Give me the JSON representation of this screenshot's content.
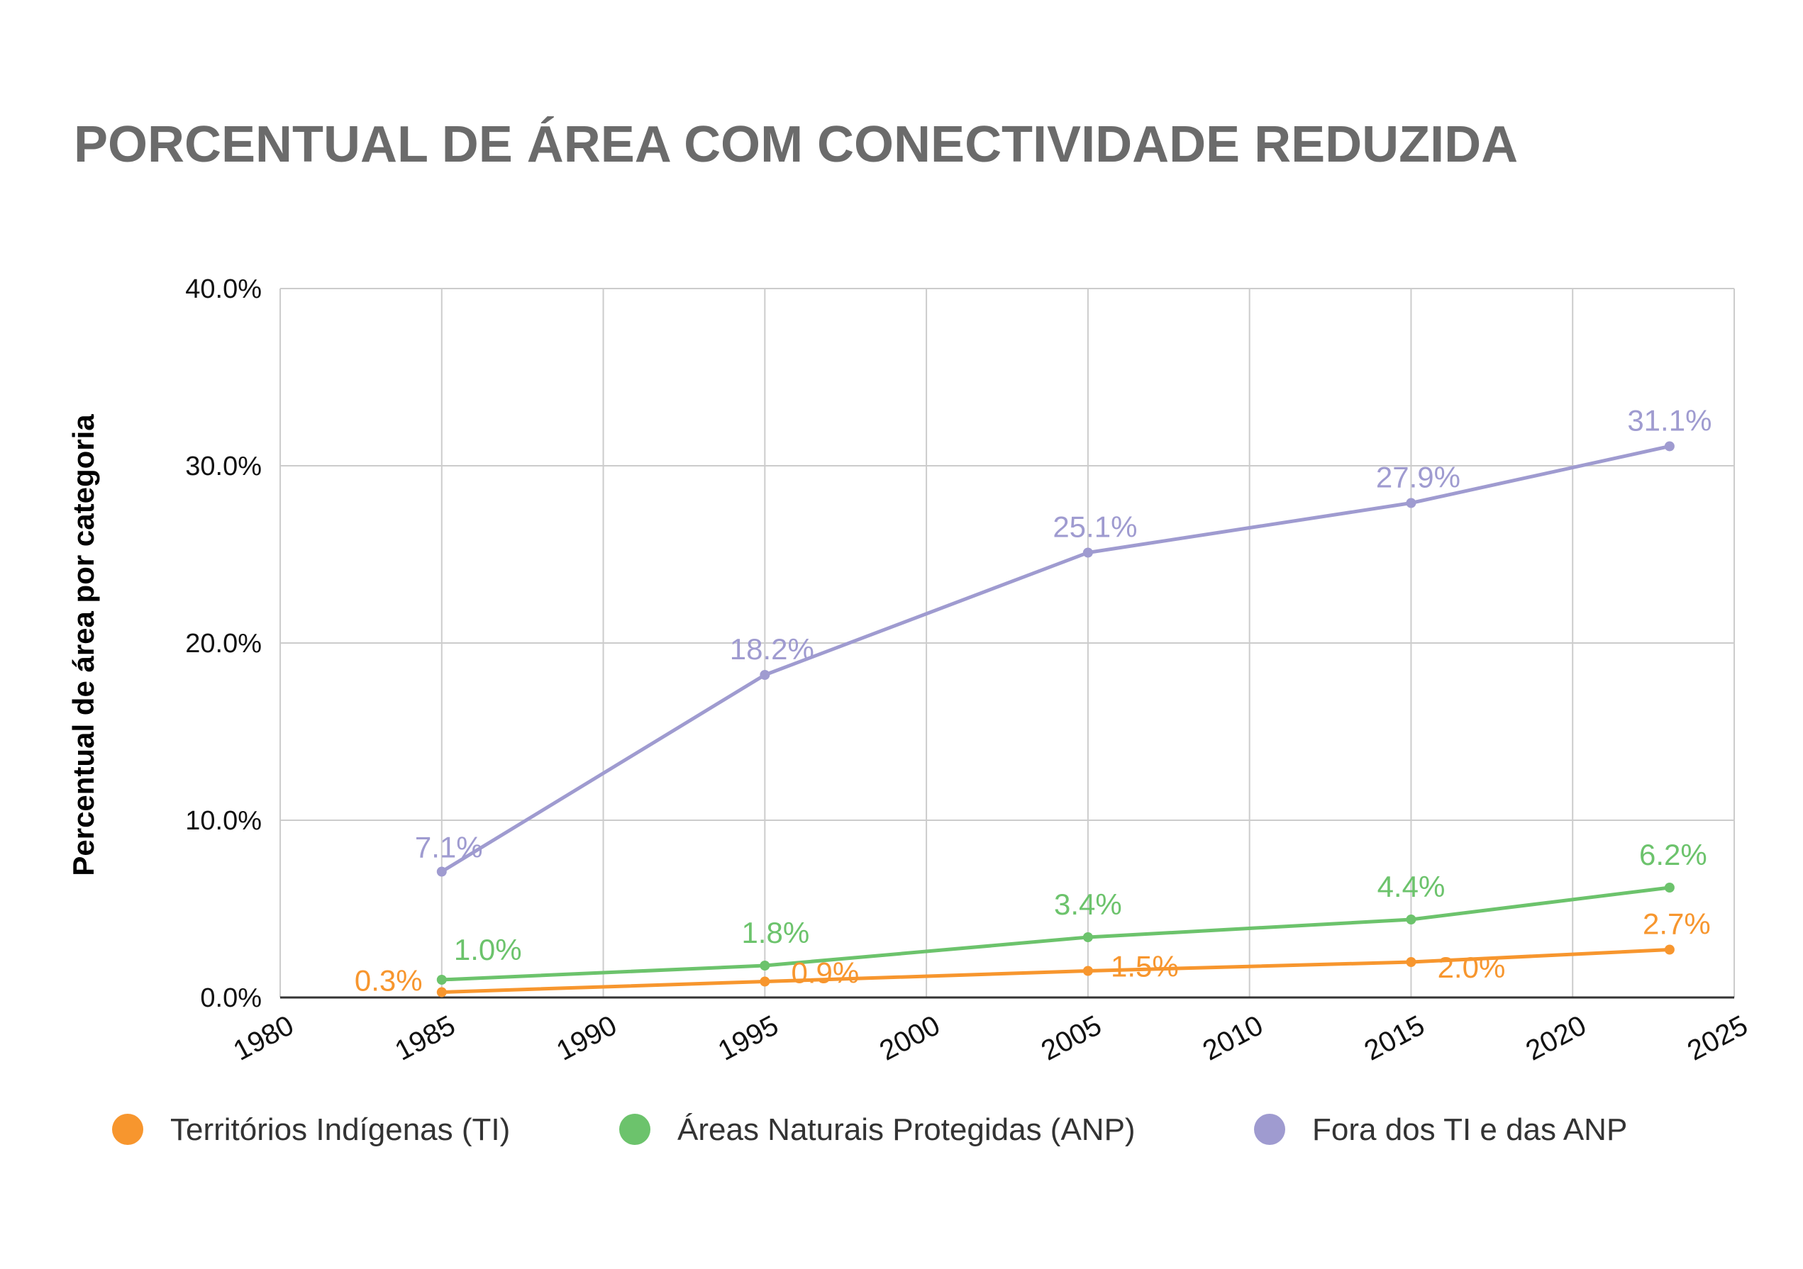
{
  "chart_data": {
    "type": "line",
    "title": "PORCENTUAL DE ÁREA COM CONECTIVIDADE REDUZIDA",
    "xlabel": "",
    "ylabel": "Percentual de área por categoria",
    "xlim": [
      1980,
      2025
    ],
    "ylim": [
      0,
      40
    ],
    "x_ticks": [
      "1980",
      "1985",
      "1990",
      "1995",
      "2000",
      "2005",
      "2010",
      "2015",
      "2020",
      "2025"
    ],
    "y_ticks": [
      "0.0%",
      "10.0%",
      "20.0%",
      "30.0%",
      "40.0%"
    ],
    "grid": true,
    "legend_position": "bottom",
    "series": [
      {
        "name": "Territórios Indígenas (TI)",
        "color": "#f7962e",
        "x": [
          1985,
          1995,
          2005,
          2015,
          2023
        ],
        "values": [
          0.3,
          0.9,
          1.5,
          2.0,
          2.7
        ],
        "labels": [
          "0.3%",
          "0.9%",
          "1.5%",
          "2.0%",
          "2.7%"
        ]
      },
      {
        "name": "Áreas Naturais Protegidas (ANP)",
        "color": "#6cc36c",
        "x": [
          1985,
          1995,
          2005,
          2015,
          2023
        ],
        "values": [
          1.0,
          1.8,
          3.4,
          4.4,
          6.2
        ],
        "labels": [
          "1.0%",
          "1.8%",
          "3.4%",
          "4.4%",
          "6.2%"
        ]
      },
      {
        "name": "Fora dos TI e das ANP",
        "color": "#9f9bd0",
        "x": [
          1985,
          1995,
          2005,
          2015,
          2023
        ],
        "values": [
          7.1,
          18.2,
          25.1,
          27.9,
          31.1
        ],
        "labels": [
          "7.1%",
          "18.2%",
          "25.1%",
          "27.9%",
          "31.1%"
        ]
      }
    ]
  }
}
